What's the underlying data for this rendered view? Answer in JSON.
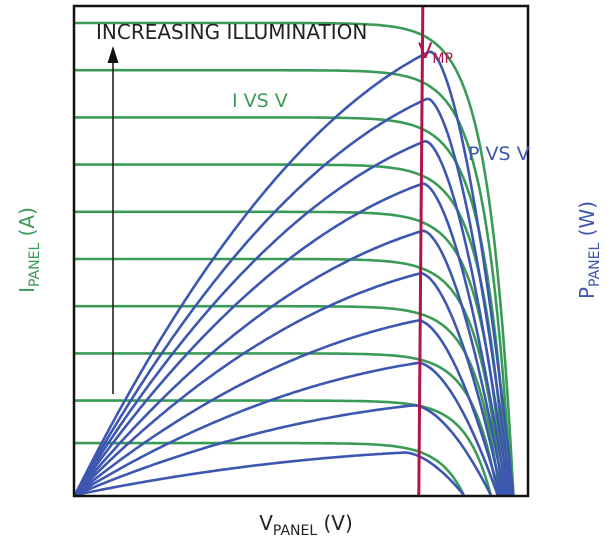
{
  "colors": {
    "current": "#3a9b57",
    "power": "#3d57b0",
    "vmp": "#b0144c",
    "text": "#222222",
    "frame": "#111111"
  },
  "labels": {
    "annotation": "INCREASING ILLUMINATION",
    "vmp_main": "V",
    "vmp_sub": "MP",
    "current_curve": "I VS V",
    "power_curve": "P VS V",
    "ylabel_left_main": "I",
    "ylabel_left_sub": "PANEL",
    "ylabel_left_unit": " (A)",
    "ylabel_right_main": "P",
    "ylabel_right_sub": "PANEL",
    "ylabel_right_unit": " (W)",
    "xlabel_main": "V",
    "xlabel_sub": "PANEL",
    "xlabel_unit": " (V)"
  },
  "chart_data": {
    "type": "line",
    "title": "",
    "xlabel": "VPANEL (V)",
    "ylabel_left": "IPANEL (A)",
    "ylabel_right": "PPANEL (W)",
    "annotations": [
      "INCREASING ILLUMINATION",
      "VMP",
      "I VS V",
      "P VS V"
    ],
    "vmp": 0.765,
    "xlim": [
      0,
      1
    ],
    "ylim": [
      0,
      1
    ],
    "grid": false,
    "legend": "none",
    "series": [
      {
        "kind": "current",
        "isc": 0.11,
        "voc": 0.86
      },
      {
        "kind": "current",
        "isc": 0.2,
        "voc": 0.92
      },
      {
        "kind": "current",
        "isc": 0.3,
        "voc": 0.935
      },
      {
        "kind": "current",
        "isc": 0.4,
        "voc": 0.94
      },
      {
        "kind": "current",
        "isc": 0.5,
        "voc": 0.945
      },
      {
        "kind": "current",
        "isc": 0.6,
        "voc": 0.95
      },
      {
        "kind": "current",
        "isc": 0.7,
        "voc": 0.955
      },
      {
        "kind": "current",
        "isc": 0.8,
        "voc": 0.96
      },
      {
        "kind": "current",
        "isc": 0.9,
        "voc": 0.965
      },
      {
        "kind": "current",
        "isc": 1.0,
        "voc": 0.97
      },
      {
        "kind": "power",
        "pmax": 0.09,
        "vmp": 0.73,
        "voc": 0.86
      },
      {
        "kind": "power",
        "pmax": 0.19,
        "vmp": 0.75,
        "voc": 0.92
      },
      {
        "kind": "power",
        "pmax": 0.28,
        "vmp": 0.76,
        "voc": 0.935
      },
      {
        "kind": "power",
        "pmax": 0.37,
        "vmp": 0.76,
        "voc": 0.94
      },
      {
        "kind": "power",
        "pmax": 0.47,
        "vmp": 0.765,
        "voc": 0.945
      },
      {
        "kind": "power",
        "pmax": 0.56,
        "vmp": 0.77,
        "voc": 0.95
      },
      {
        "kind": "power",
        "pmax": 0.66,
        "vmp": 0.77,
        "voc": 0.955
      },
      {
        "kind": "power",
        "pmax": 0.75,
        "vmp": 0.775,
        "voc": 0.96
      },
      {
        "kind": "power",
        "pmax": 0.84,
        "vmp": 0.78,
        "voc": 0.965
      },
      {
        "kind": "power",
        "pmax": 0.94,
        "vmp": 0.785,
        "voc": 0.97
      }
    ]
  }
}
